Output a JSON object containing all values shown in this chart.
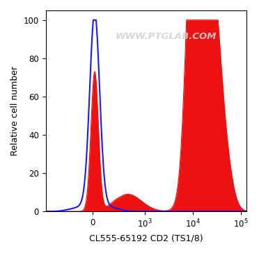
{
  "xlabel": "CL555-65192 CD2 (TS1/8)",
  "ylabel": "Relative cell number",
  "watermark": "WWW.PTGLAB.COM",
  "ylim": [
    0,
    105
  ],
  "yticks": [
    0,
    20,
    40,
    60,
    80,
    100
  ],
  "background_color": "#ffffff",
  "plot_bg_color": "#ffffff",
  "blue_color": "#1a1aff",
  "red_color": "#ee1111",
  "linthresh": 300,
  "linscale": 0.5,
  "xlim_left": -800,
  "xlim_right": 130000
}
